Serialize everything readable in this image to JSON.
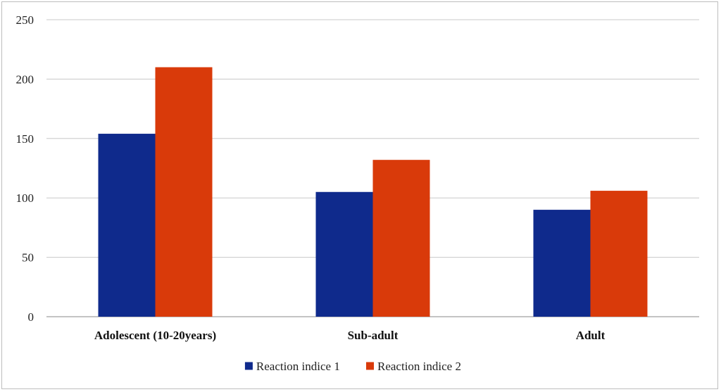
{
  "chart_data": {
    "type": "bar",
    "title": "",
    "xlabel": "",
    "ylabel": "",
    "categories": [
      "Adolescent (10-20years)",
      "Sub-adult",
      "Adult"
    ],
    "series": [
      {
        "name": "Reaction indice 1",
        "color": "#0f2a8c",
        "values": [
          154,
          105,
          90
        ]
      },
      {
        "name": "Reaction indice 2",
        "color": "#d93a0a",
        "values": [
          210,
          132,
          106
        ]
      }
    ],
    "ylim": [
      0,
      250
    ],
    "yticks": [
      0,
      50,
      100,
      150,
      200,
      250
    ],
    "grid": true,
    "legend_position": "bottom"
  }
}
